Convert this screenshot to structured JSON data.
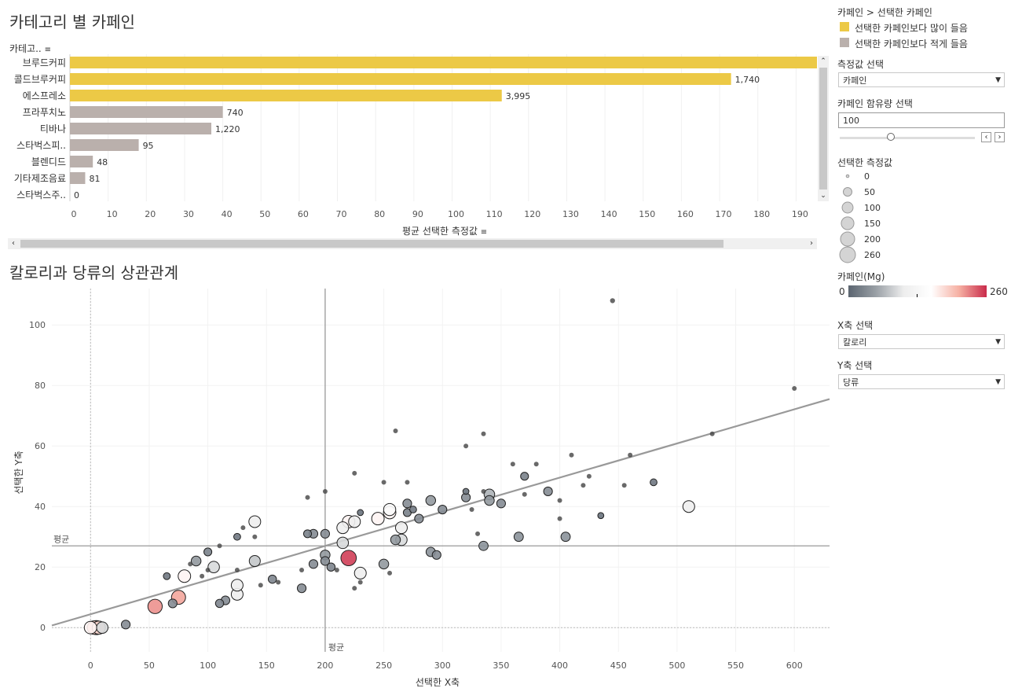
{
  "bar_title": "카테고리 별 카페인",
  "bar_header": "카테고..",
  "bar_x_title": "평균 선택한 측정값",
  "scatter_title": "칼로리과 당류의 상관관계",
  "scatter_x_title": "선택한 X축",
  "scatter_y_title": "선택한 Y축",
  "avg_label_h": "평균",
  "avg_label_v": "평균",
  "legend": {
    "title": "카페인 > 선택한 카페인",
    "more": "선택한 카페인보다 많이 들음",
    "less": "선택한 카페인보다 적게 들음",
    "more_color": "#ecc946",
    "less_color": "#bab0ac"
  },
  "measure_select": {
    "label": "측정값 선택",
    "value": "카페인"
  },
  "caffeine_param": {
    "label": "카페인 함유량 선택",
    "value": "100",
    "fraction": 0.38
  },
  "size_legend": {
    "title": "선택한 측정값",
    "items": [
      "0",
      "50",
      "100",
      "150",
      "200",
      "260"
    ]
  },
  "color_legend": {
    "title": "카페인(Mg)",
    "min": "0",
    "max": "260"
  },
  "x_select": {
    "label": "X축 선택",
    "value": "칼로리"
  },
  "y_select": {
    "label": "Y축 선택",
    "value": "당류"
  },
  "chart_data": [
    {
      "type": "bar",
      "title": "카테고리 별 카페인",
      "xlabel": "평균 선택한 측정값",
      "xlim": [
        0,
        197
      ],
      "x_ticks": [
        "0",
        "10",
        "20",
        "30",
        "40",
        "50",
        "60",
        "70",
        "80",
        "90",
        "100",
        "110",
        "120",
        "130",
        "140",
        "150",
        "160",
        "170",
        "180",
        "190"
      ],
      "categories": [
        "브루드커피",
        "콜드브루커피",
        "에스프레소",
        "프라푸치노",
        "티바나",
        "스타벅스피..",
        "블렌디드",
        "기타제조음료",
        "스타벅스주.."
      ],
      "values": [
        197,
        173,
        113,
        40,
        37,
        18,
        6,
        4,
        0
      ],
      "labels": [
        "",
        "1,740",
        "3,995",
        "740",
        "1,220",
        "95",
        "48",
        "81",
        "0"
      ],
      "above_selected": [
        true,
        true,
        true,
        false,
        false,
        false,
        false,
        false,
        false
      ]
    },
    {
      "type": "scatter",
      "title": "칼로리과 당류의 상관관계",
      "xlabel": "선택한 X축",
      "ylabel": "선택한 Y축",
      "xlim": [
        -33,
        630
      ],
      "ylim": [
        -8,
        112
      ],
      "x_ticks": [
        "0",
        "50",
        "100",
        "150",
        "200",
        "250",
        "300",
        "350",
        "400",
        "450",
        "500",
        "550",
        "600"
      ],
      "y_ticks": [
        "0",
        "20",
        "40",
        "60",
        "80",
        "100"
      ],
      "avg_x": 200,
      "avg_y": 27,
      "trend": {
        "x": [
          -33,
          630
        ],
        "y": [
          0.7,
          75.5
        ]
      },
      "points": [
        [
          0,
          0,
          150
        ],
        [
          3,
          0,
          180
        ],
        [
          5,
          0,
          200
        ],
        [
          7,
          0,
          170
        ],
        [
          10,
          0,
          120
        ],
        [
          30,
          1,
          60
        ],
        [
          55,
          7,
          210
        ],
        [
          75,
          10,
          200
        ],
        [
          80,
          17,
          150
        ],
        [
          65,
          17,
          30
        ],
        [
          70,
          8,
          60
        ],
        [
          90,
          22,
          80
        ],
        [
          100,
          25,
          45
        ],
        [
          105,
          20,
          120
        ],
        [
          110,
          8,
          50
        ],
        [
          115,
          9,
          60
        ],
        [
          125,
          11,
          130
        ],
        [
          125,
          14,
          130
        ],
        [
          125,
          30,
          30
        ],
        [
          140,
          35,
          130
        ],
        [
          140,
          22,
          110
        ],
        [
          155,
          16,
          50
        ],
        [
          180,
          13,
          60
        ],
        [
          185,
          31,
          45
        ],
        [
          190,
          31,
          60
        ],
        [
          190,
          21,
          60
        ],
        [
          200,
          31,
          60
        ],
        [
          200,
          24,
          80
        ],
        [
          200,
          22,
          60
        ],
        [
          205,
          20,
          50
        ],
        [
          215,
          33,
          130
        ],
        [
          215,
          28,
          120
        ],
        [
          220,
          35,
          150
        ],
        [
          225,
          35,
          130
        ],
        [
          220,
          23,
          250
        ],
        [
          230,
          18,
          130
        ],
        [
          230,
          38,
          20
        ],
        [
          245,
          36,
          150
        ],
        [
          255,
          38,
          150
        ],
        [
          255,
          39,
          140
        ],
        [
          250,
          21,
          80
        ],
        [
          260,
          29,
          80
        ],
        [
          265,
          29,
          120
        ],
        [
          265,
          33,
          130
        ],
        [
          270,
          41,
          60
        ],
        [
          270,
          38,
          45
        ],
        [
          275,
          39,
          30
        ],
        [
          280,
          36,
          60
        ],
        [
          290,
          42,
          80
        ],
        [
          290,
          25,
          70
        ],
        [
          295,
          24,
          60
        ],
        [
          300,
          39,
          60
        ],
        [
          320,
          43,
          60
        ],
        [
          320,
          45,
          20
        ],
        [
          335,
          27,
          70
        ],
        [
          340,
          42,
          80
        ],
        [
          340,
          44,
          100
        ],
        [
          350,
          41,
          60
        ],
        [
          365,
          30,
          70
        ],
        [
          370,
          50,
          45
        ],
        [
          390,
          45,
          60
        ],
        [
          405,
          30,
          70
        ],
        [
          480,
          48,
          30
        ],
        [
          510,
          40,
          130
        ],
        [
          435,
          37,
          20
        ],
        [
          360,
          54,
          8
        ],
        [
          380,
          54,
          8
        ],
        [
          400,
          42,
          8
        ],
        [
          410,
          57,
          8
        ],
        [
          420,
          47,
          8
        ],
        [
          425,
          50,
          8
        ],
        [
          455,
          47,
          8
        ],
        [
          460,
          57,
          8
        ],
        [
          530,
          64,
          8
        ],
        [
          600,
          79,
          8
        ],
        [
          445,
          108,
          10
        ],
        [
          260,
          65,
          8
        ],
        [
          335,
          64,
          8
        ],
        [
          320,
          60,
          8
        ],
        [
          250,
          48,
          8
        ],
        [
          225,
          51,
          8
        ],
        [
          200,
          45,
          8
        ],
        [
          185,
          43,
          8
        ],
        [
          255,
          18,
          8
        ],
        [
          230,
          15,
          8
        ],
        [
          225,
          13,
          8
        ],
        [
          210,
          19,
          8
        ],
        [
          180,
          19,
          8
        ],
        [
          160,
          15,
          8
        ],
        [
          145,
          14,
          8
        ],
        [
          140,
          30,
          8
        ],
        [
          130,
          33,
          8
        ],
        [
          125,
          19,
          8
        ],
        [
          110,
          27,
          8
        ],
        [
          95,
          17,
          8
        ],
        [
          100,
          19,
          8
        ],
        [
          85,
          21,
          8
        ],
        [
          270,
          48,
          8
        ],
        [
          325,
          39,
          8
        ],
        [
          330,
          31,
          8
        ],
        [
          335,
          45,
          8
        ],
        [
          370,
          44,
          8
        ],
        [
          400,
          36,
          8
        ]
      ]
    }
  ]
}
